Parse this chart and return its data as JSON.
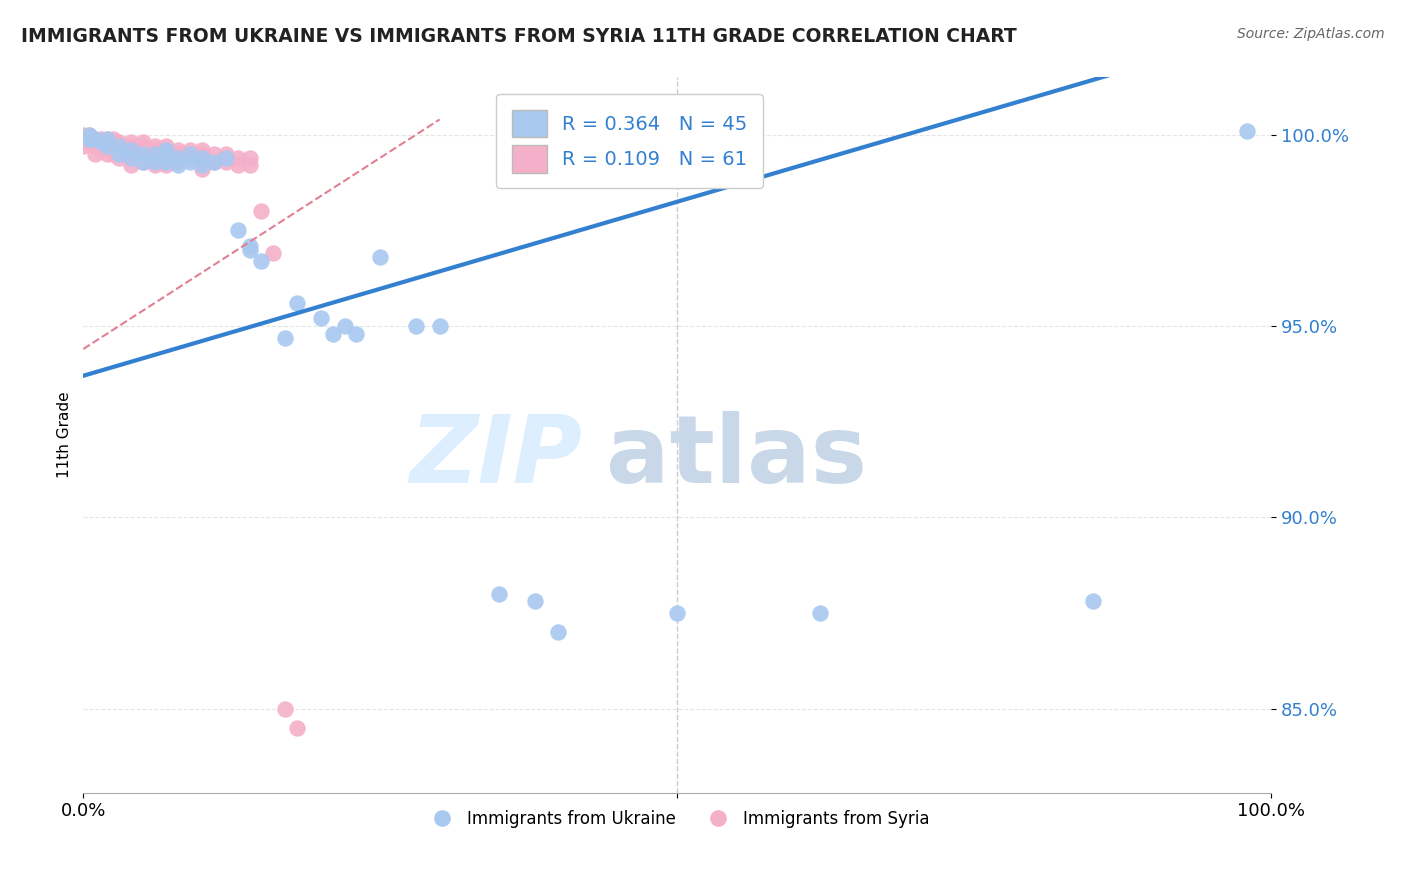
{
  "title": "IMMIGRANTS FROM UKRAINE VS IMMIGRANTS FROM SYRIA 11TH GRADE CORRELATION CHART",
  "source": "Source: ZipAtlas.com",
  "ylabel": "11th Grade",
  "y_ticks": [
    0.85,
    0.9,
    0.95,
    1.0
  ],
  "y_tick_labels": [
    "85.0%",
    "90.0%",
    "95.0%",
    "100.0%"
  ],
  "x_range": [
    0.0,
    1.0
  ],
  "y_range": [
    0.828,
    1.015
  ],
  "R_ukraine": 0.364,
  "N_ukraine": 45,
  "R_syria": 0.109,
  "N_syria": 61,
  "ukraine_color": "#a8c8f0",
  "syria_color": "#f4b0c8",
  "ukraine_line_color": "#3380d0",
  "syria_line_color": "#e08090",
  "watermark_zip": "ZIP",
  "watermark_atlas": "atlas",
  "legend_ukraine": "Immigrants from Ukraine",
  "legend_syria": "Immigrants from Syria",
  "ukraine_x": [
    0.005,
    0.005,
    0.01,
    0.015,
    0.02,
    0.02,
    0.03,
    0.03,
    0.04,
    0.04,
    0.05,
    0.05,
    0.06,
    0.06,
    0.07,
    0.07,
    0.07,
    0.08,
    0.08,
    0.09,
    0.09,
    0.1,
    0.1,
    0.11,
    0.12,
    0.13,
    0.14,
    0.14,
    0.15,
    0.17,
    0.18,
    0.2,
    0.21,
    0.22,
    0.23,
    0.25,
    0.28,
    0.3,
    0.35,
    0.38,
    0.4,
    0.5,
    0.62,
    0.85,
    0.98
  ],
  "ukraine_y": [
    1.0,
    0.999,
    0.999,
    0.998,
    0.999,
    0.997,
    0.997,
    0.995,
    0.996,
    0.994,
    0.995,
    0.993,
    0.995,
    0.993,
    0.996,
    0.995,
    0.993,
    0.994,
    0.992,
    0.995,
    0.993,
    0.994,
    0.992,
    0.993,
    0.994,
    0.975,
    0.971,
    0.97,
    0.967,
    0.947,
    0.956,
    0.952,
    0.948,
    0.95,
    0.948,
    0.968,
    0.95,
    0.95,
    0.88,
    0.878,
    0.87,
    0.875,
    0.875,
    0.878,
    1.001
  ],
  "syria_x": [
    0.0,
    0.0,
    0.0,
    0.005,
    0.005,
    0.01,
    0.01,
    0.01,
    0.01,
    0.015,
    0.015,
    0.015,
    0.02,
    0.02,
    0.02,
    0.02,
    0.025,
    0.025,
    0.025,
    0.03,
    0.03,
    0.03,
    0.03,
    0.04,
    0.04,
    0.04,
    0.04,
    0.04,
    0.05,
    0.05,
    0.05,
    0.05,
    0.06,
    0.06,
    0.06,
    0.06,
    0.07,
    0.07,
    0.07,
    0.07,
    0.08,
    0.08,
    0.08,
    0.09,
    0.09,
    0.1,
    0.1,
    0.1,
    0.1,
    0.11,
    0.11,
    0.12,
    0.12,
    0.13,
    0.13,
    0.14,
    0.14,
    0.15,
    0.16,
    0.17,
    0.18
  ],
  "syria_y": [
    1.0,
    0.999,
    0.997,
    1.0,
    0.998,
    0.999,
    0.998,
    0.997,
    0.995,
    0.999,
    0.998,
    0.996,
    0.999,
    0.998,
    0.997,
    0.995,
    0.999,
    0.997,
    0.995,
    0.998,
    0.997,
    0.996,
    0.994,
    0.998,
    0.997,
    0.996,
    0.994,
    0.992,
    0.998,
    0.997,
    0.995,
    0.993,
    0.997,
    0.996,
    0.994,
    0.992,
    0.997,
    0.996,
    0.994,
    0.992,
    0.996,
    0.995,
    0.993,
    0.996,
    0.994,
    0.996,
    0.995,
    0.993,
    0.991,
    0.995,
    0.993,
    0.995,
    0.993,
    0.994,
    0.992,
    0.994,
    0.992,
    0.98,
    0.969,
    0.85,
    0.845
  ]
}
